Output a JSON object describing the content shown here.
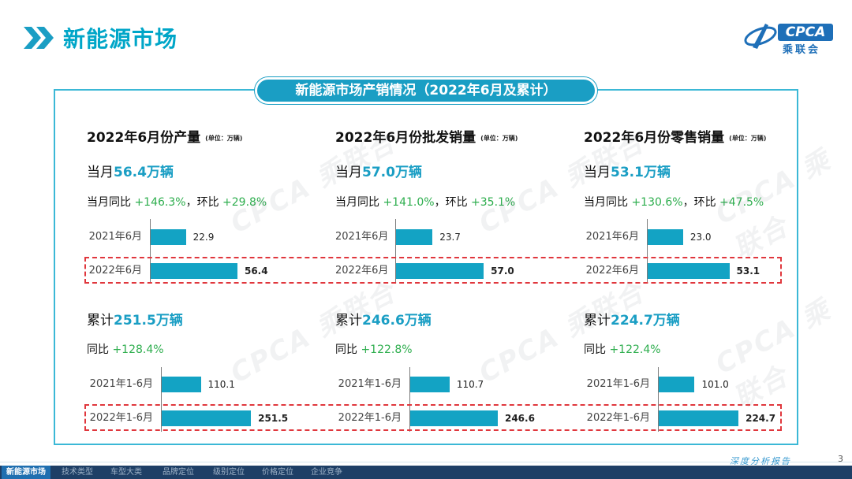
{
  "header": {
    "title": "新能源市场",
    "logo": {
      "mark": "CPCA",
      "sub": "乘联会"
    }
  },
  "banner": "新能源市场产销情况（2022年6月及累计）",
  "unit_label": "(单位：万辆)",
  "panels": [
    {
      "title": "2022年6月份产量",
      "month": {
        "prefix": "当月",
        "value": "56.4万辆",
        "yoy_label": "当月同比",
        "yoy": "+146.3%",
        "sep": "，",
        "mom_label": "环比",
        "mom": "+29.8%"
      },
      "month_bars": [
        {
          "label": "2021年6月",
          "value": 22.9,
          "value_text": "22.9"
        },
        {
          "label": "2022年6月",
          "value": 56.4,
          "value_text": "56.4"
        }
      ],
      "cum": {
        "prefix": "累计",
        "value": "251.5万辆",
        "yoy_label": "同比",
        "yoy": "+128.4%"
      },
      "cum_bars": [
        {
          "label": "2021年1-6月",
          "value": 110.1,
          "value_text": "110.1"
        },
        {
          "label": "2022年1-6月",
          "value": 251.5,
          "value_text": "251.5"
        }
      ]
    },
    {
      "title": "2022年6月份批发销量",
      "month": {
        "prefix": "当月",
        "value": "57.0万辆",
        "yoy_label": "当月同比",
        "yoy": "+141.0%",
        "sep": "，",
        "mom_label": "环比",
        "mom": "+35.1%"
      },
      "month_bars": [
        {
          "label": "2021年6月",
          "value": 23.7,
          "value_text": "23.7"
        },
        {
          "label": "2022年6月",
          "value": 57.0,
          "value_text": "57.0"
        }
      ],
      "cum": {
        "prefix": "累计",
        "value": "246.6万辆",
        "yoy_label": "同比",
        "yoy": "+122.8%"
      },
      "cum_bars": [
        {
          "label": "2021年1-6月",
          "value": 110.7,
          "value_text": "110.7"
        },
        {
          "label": "2022年1-6月",
          "value": 246.6,
          "value_text": "246.6"
        }
      ]
    },
    {
      "title": "2022年6月份零售销量",
      "month": {
        "prefix": "当月",
        "value": "53.1万辆",
        "yoy_label": "当月同比",
        "yoy": "+130.6%",
        "sep": "，",
        "mom_label": "环比",
        "mom": "+47.5%"
      },
      "month_bars": [
        {
          "label": "2021年6月",
          "value": 23.0,
          "value_text": "23.0"
        },
        {
          "label": "2022年6月",
          "value": 53.1,
          "value_text": "53.1"
        }
      ],
      "cum": {
        "prefix": "累计",
        "value": "224.7万辆",
        "yoy_label": "同比",
        "yoy": "+122.4%"
      },
      "cum_bars": [
        {
          "label": "2021年1-6月",
          "value": 101.0,
          "value_text": "101.0"
        },
        {
          "label": "2022年1-6月",
          "value": 224.7,
          "value_text": "224.7"
        }
      ]
    }
  ],
  "watermark_text": "CPCA 乘联合",
  "footer": {
    "nav": [
      "新能源市场",
      "技术类型",
      "车型大类",
      "品牌定位",
      "级别定位",
      "价格定位",
      "企业竞争"
    ],
    "active_index": 0,
    "report_label": "深度分析报告",
    "page_number": "3"
  },
  "colors": {
    "accent": "#00a6c8",
    "bar": "#13a3c4",
    "positive": "#2eae4e",
    "highlight_box": "#e0373d",
    "footer": "#1e3f66"
  }
}
